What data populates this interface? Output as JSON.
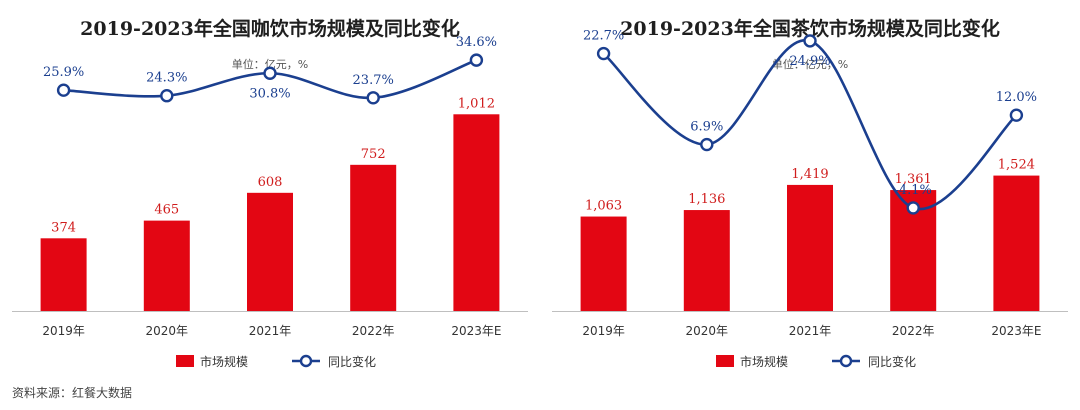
{
  "source": "资料来源：红餐大数据",
  "chart_data": [
    {
      "type": "bar",
      "title": "2019-2023年全国咖饮市场规模及同比变化",
      "unit_note": "单位：亿元，%",
      "categories": [
        "2019年",
        "2020年",
        "2021年",
        "2022年",
        "2023年E"
      ],
      "series": [
        {
          "name": "市场规模",
          "type": "bar",
          "values": [
            374,
            465,
            608,
            752,
            1012
          ],
          "labels": [
            "374",
            "465",
            "608",
            "752",
            "1,012"
          ]
        },
        {
          "name": "同比变化",
          "type": "line",
          "values": [
            25.9,
            24.3,
            30.8,
            23.7,
            34.6
          ],
          "labels": [
            "25.9%",
            "24.3%",
            "30.8%",
            "23.7%",
            "34.6%"
          ]
        }
      ],
      "ylim": [
        0,
        1600
      ],
      "y2lim": [
        -38,
        52
      ],
      "grid": false,
      "legend": "bottom",
      "colors": {
        "bar": "#e30613",
        "line": "#1b3f8f",
        "bar_label": "#d01c1c",
        "line_label": "#1b3f8f"
      }
    },
    {
      "type": "bar",
      "title": "2019-2023年全国茶饮市场规模及同比变化",
      "unit_note": "单位：亿元，%",
      "categories": [
        "2019年",
        "2020年",
        "2021年",
        "2022年",
        "2023年E"
      ],
      "series": [
        {
          "name": "市场规模",
          "type": "bar",
          "values": [
            1063,
            1136,
            1419,
            1361,
            1524
          ],
          "labels": [
            "1,063",
            "1,136",
            "1,419",
            "1,361",
            "1,524"
          ]
        },
        {
          "name": "同比变化",
          "type": "line",
          "values": [
            22.7,
            6.9,
            24.9,
            -4.1,
            12.0
          ],
          "labels": [
            "22.7%",
            "6.9%",
            "24.9%",
            "-4.1%",
            "12.0%"
          ]
        }
      ],
      "ylim": [
        0,
        3500
      ],
      "y2lim": [
        -22,
        32
      ],
      "grid": false,
      "legend": "bottom",
      "colors": {
        "bar": "#e30613",
        "line": "#1b3f8f",
        "bar_label": "#d01c1c",
        "line_label": "#1b3f8f"
      }
    }
  ]
}
